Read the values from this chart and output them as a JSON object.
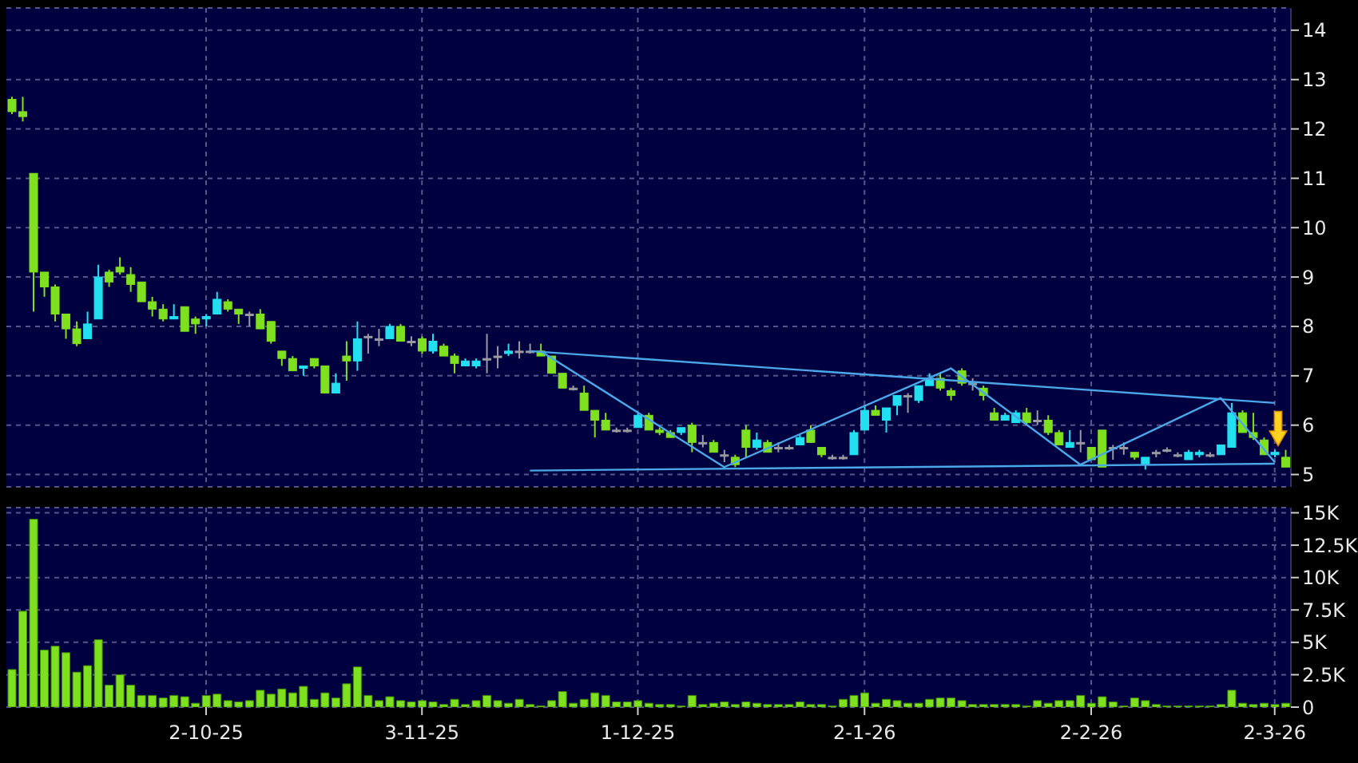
{
  "chart_data": [
    {
      "type": "candlestick",
      "categories": [
        null,
        null,
        null,
        null,
        null,
        null,
        null,
        null,
        null,
        null,
        null,
        null,
        null,
        null,
        null,
        null,
        null,
        null,
        null,
        null,
        null,
        null,
        null,
        null,
        null,
        null,
        null,
        null,
        null,
        null,
        null,
        null,
        null,
        null,
        null,
        null,
        null,
        null,
        null,
        null,
        null,
        null,
        null,
        null,
        null,
        null,
        null,
        null,
        null,
        null,
        null,
        null,
        null,
        null,
        null,
        null,
        null,
        null,
        null,
        null,
        null,
        null,
        null,
        null,
        null,
        null,
        null,
        null,
        null,
        null,
        null,
        null,
        null,
        null,
        null,
        null,
        null,
        null,
        null,
        null,
        null,
        null,
        null,
        null,
        null,
        null,
        null,
        null,
        null,
        null,
        null,
        null,
        null,
        null,
        null,
        null,
        null,
        null,
        null,
        null,
        null,
        null,
        null,
        null,
        null,
        null,
        null,
        null,
        null,
        null,
        null,
        null,
        null,
        null,
        null,
        null,
        null,
        null,
        null
      ],
      "ohlc": [
        [
          12.6,
          12.65,
          12.3,
          12.35
        ],
        [
          12.35,
          12.65,
          12.15,
          12.25
        ],
        [
          11.1,
          11.1,
          8.3,
          9.1
        ],
        [
          9.1,
          9.1,
          8.6,
          8.8
        ],
        [
          8.8,
          8.85,
          8.1,
          8.25
        ],
        [
          8.25,
          8.25,
          7.75,
          7.95
        ],
        [
          7.95,
          8.1,
          7.6,
          7.65
        ],
        [
          7.75,
          8.3,
          7.75,
          8.05
        ],
        [
          8.15,
          9.25,
          8.15,
          9.0
        ],
        [
          9.1,
          9.15,
          8.8,
          8.9
        ],
        [
          9.2,
          9.4,
          9.05,
          9.1
        ],
        [
          9.05,
          9.2,
          8.7,
          8.85
        ],
        [
          8.9,
          8.9,
          8.5,
          8.5
        ],
        [
          8.5,
          8.6,
          8.2,
          8.35
        ],
        [
          8.35,
          8.45,
          8.1,
          8.15
        ],
        [
          8.15,
          8.45,
          8.15,
          8.2
        ],
        [
          8.4,
          8.4,
          7.9,
          7.9
        ],
        [
          8.15,
          8.2,
          7.85,
          8.05
        ],
        [
          8.15,
          8.25,
          8.0,
          8.2
        ],
        [
          8.25,
          8.7,
          8.25,
          8.55
        ],
        [
          8.5,
          8.55,
          8.3,
          8.35
        ],
        [
          8.35,
          8.35,
          8.05,
          8.25
        ],
        [
          8.25,
          8.3,
          8.0,
          8.25
        ],
        [
          8.25,
          8.35,
          7.95,
          7.95
        ],
        [
          8.1,
          8.1,
          7.65,
          7.7
        ],
        [
          7.5,
          7.5,
          7.2,
          7.35
        ],
        [
          7.35,
          7.4,
          7.1,
          7.1
        ],
        [
          7.15,
          7.2,
          7.0,
          7.2
        ],
        [
          7.35,
          7.35,
          7.15,
          7.2
        ],
        [
          7.2,
          7.2,
          6.65,
          6.65
        ],
        [
          6.65,
          7.05,
          6.65,
          6.85
        ],
        [
          7.4,
          7.7,
          6.9,
          7.3
        ],
        [
          7.3,
          8.1,
          7.1,
          7.75
        ],
        [
          7.8,
          7.85,
          7.45,
          7.8
        ],
        [
          7.75,
          7.95,
          7.6,
          7.75
        ],
        [
          7.75,
          8.05,
          7.75,
          8.0
        ],
        [
          8.0,
          8.05,
          7.7,
          7.7
        ],
        [
          7.7,
          7.8,
          7.6,
          7.7
        ],
        [
          7.75,
          7.8,
          7.45,
          7.5
        ],
        [
          7.5,
          7.85,
          7.45,
          7.7
        ],
        [
          7.6,
          7.65,
          7.4,
          7.4
        ],
        [
          7.4,
          7.45,
          7.05,
          7.25
        ],
        [
          7.2,
          7.35,
          7.2,
          7.3
        ],
        [
          7.2,
          7.35,
          7.15,
          7.3
        ],
        [
          7.35,
          7.85,
          7.05,
          7.35
        ],
        [
          7.4,
          7.6,
          7.15,
          7.4
        ],
        [
          7.45,
          7.65,
          7.4,
          7.5
        ],
        [
          7.5,
          7.7,
          7.35,
          7.5
        ],
        [
          7.5,
          7.65,
          7.45,
          7.5
        ],
        [
          7.5,
          7.65,
          7.4,
          7.4
        ],
        [
          7.4,
          7.4,
          7.05,
          7.05
        ],
        [
          7.05,
          7.05,
          6.75,
          6.75
        ],
        [
          6.75,
          6.8,
          6.7,
          6.75
        ],
        [
          6.65,
          6.8,
          6.3,
          6.3
        ],
        [
          6.3,
          6.3,
          5.75,
          6.1
        ],
        [
          6.1,
          6.25,
          5.9,
          5.9
        ],
        [
          5.9,
          5.95,
          5.85,
          5.9
        ],
        [
          5.9,
          5.95,
          5.85,
          5.9
        ],
        [
          5.95,
          6.25,
          5.95,
          6.2
        ],
        [
          6.2,
          6.25,
          5.9,
          5.9
        ],
        [
          5.9,
          5.95,
          5.8,
          5.85
        ],
        [
          5.85,
          5.9,
          5.75,
          5.75
        ],
        [
          5.85,
          5.95,
          5.8,
          5.95
        ],
        [
          6.0,
          6.05,
          5.45,
          5.65
        ],
        [
          5.65,
          5.8,
          5.55,
          5.65
        ],
        [
          5.65,
          5.7,
          5.45,
          5.45
        ],
        [
          5.4,
          5.5,
          5.25,
          5.4
        ],
        [
          5.35,
          5.4,
          5.15,
          5.2
        ],
        [
          5.9,
          6.0,
          5.35,
          5.55
        ],
        [
          5.55,
          5.85,
          5.5,
          5.7
        ],
        [
          5.65,
          5.7,
          5.45,
          5.45
        ],
        [
          5.55,
          5.65,
          5.45,
          5.55
        ],
        [
          5.55,
          5.6,
          5.5,
          5.55
        ],
        [
          5.6,
          5.8,
          5.6,
          5.75
        ],
        [
          5.9,
          6.0,
          5.65,
          5.65
        ],
        [
          5.55,
          5.55,
          5.35,
          5.4
        ],
        [
          5.35,
          5.4,
          5.3,
          5.35
        ],
        [
          5.35,
          5.4,
          5.3,
          5.35
        ],
        [
          5.4,
          5.9,
          5.4,
          5.85
        ],
        [
          5.9,
          6.4,
          5.9,
          6.3
        ],
        [
          6.3,
          6.4,
          6.2,
          6.2
        ],
        [
          6.1,
          6.35,
          5.85,
          6.35
        ],
        [
          6.4,
          6.6,
          6.2,
          6.6
        ],
        [
          6.6,
          6.65,
          6.25,
          6.6
        ],
        [
          6.5,
          6.8,
          6.45,
          6.8
        ],
        [
          6.8,
          7.05,
          6.8,
          6.95
        ],
        [
          6.95,
          7.05,
          6.7,
          6.75
        ],
        [
          6.7,
          6.75,
          6.5,
          6.6
        ],
        [
          7.1,
          7.15,
          6.8,
          6.85
        ],
        [
          6.85,
          6.95,
          6.7,
          6.85
        ],
        [
          6.75,
          6.8,
          6.5,
          6.6
        ],
        [
          6.25,
          6.35,
          6.1,
          6.1
        ],
        [
          6.1,
          6.25,
          6.1,
          6.2
        ],
        [
          6.05,
          6.3,
          6.05,
          6.25
        ],
        [
          6.25,
          6.35,
          6.0,
          6.05
        ],
        [
          6.1,
          6.3,
          6.0,
          6.1
        ],
        [
          6.1,
          6.2,
          5.8,
          5.85
        ],
        [
          5.85,
          5.9,
          5.6,
          5.6
        ],
        [
          5.55,
          5.9,
          5.55,
          5.65
        ],
        [
          5.65,
          5.9,
          5.45,
          5.65
        ],
        [
          5.55,
          5.55,
          5.3,
          5.3
        ],
        [
          5.9,
          5.9,
          5.15,
          5.15
        ],
        [
          5.55,
          5.6,
          5.3,
          5.55
        ],
        [
          5.55,
          5.65,
          5.4,
          5.55
        ],
        [
          5.45,
          5.45,
          5.3,
          5.35
        ],
        [
          5.2,
          5.35,
          5.1,
          5.35
        ],
        [
          5.45,
          5.5,
          5.35,
          5.45
        ],
        [
          5.5,
          5.55,
          5.45,
          5.5
        ],
        [
          5.4,
          5.45,
          5.35,
          5.4
        ],
        [
          5.3,
          5.5,
          5.3,
          5.45
        ],
        [
          5.4,
          5.5,
          5.35,
          5.45
        ],
        [
          5.4,
          5.45,
          5.35,
          5.4
        ],
        [
          5.4,
          5.6,
          5.4,
          5.6
        ],
        [
          5.55,
          6.45,
          5.55,
          6.25
        ],
        [
          6.25,
          6.3,
          5.85,
          5.85
        ],
        [
          5.85,
          6.25,
          5.7,
          5.75
        ],
        [
          5.7,
          5.75,
          5.4,
          5.4
        ],
        [
          5.4,
          5.5,
          5.35,
          5.45
        ],
        [
          5.35,
          5.5,
          5.15,
          5.15
        ]
      ],
      "colors": [
        "#7ee01e",
        "#7ee01e",
        "#7ee01e",
        "#7ee01e",
        "#7ee01e",
        "#7ee01e",
        "#7ee01e",
        "#22e0f0",
        "#22e0f0",
        "#7ee01e",
        "#7ee01e",
        "#7ee01e",
        "#7ee01e",
        "#7ee01e",
        "#7ee01e",
        "#22e0f0",
        "#7ee01e",
        "#7ee01e",
        "#22e0f0",
        "#22e0f0",
        "#7ee01e",
        "#7ee01e",
        "#9a9aa0",
        "#7ee01e",
        "#7ee01e",
        "#7ee01e",
        "#7ee01e",
        "#22e0f0",
        "#7ee01e",
        "#7ee01e",
        "#22e0f0",
        "#7ee01e",
        "#22e0f0",
        "#9a9aa0",
        "#9a9aa0",
        "#22e0f0",
        "#7ee01e",
        "#9a9aa0",
        "#7ee01e",
        "#22e0f0",
        "#7ee01e",
        "#7ee01e",
        "#22e0f0",
        "#22e0f0",
        "#9a9aa0",
        "#9a9aa0",
        "#22e0f0",
        "#9a9aa0",
        "#9a9aa0",
        "#7ee01e",
        "#7ee01e",
        "#7ee01e",
        "#9a9aa0",
        "#7ee01e",
        "#7ee01e",
        "#7ee01e",
        "#9a9aa0",
        "#9a9aa0",
        "#22e0f0",
        "#7ee01e",
        "#7ee01e",
        "#7ee01e",
        "#22e0f0",
        "#7ee01e",
        "#9a9aa0",
        "#7ee01e",
        "#9a9aa0",
        "#7ee01e",
        "#7ee01e",
        "#22e0f0",
        "#7ee01e",
        "#9a9aa0",
        "#9a9aa0",
        "#22e0f0",
        "#7ee01e",
        "#7ee01e",
        "#9a9aa0",
        "#9a9aa0",
        "#22e0f0",
        "#22e0f0",
        "#7ee01e",
        "#22e0f0",
        "#22e0f0",
        "#9a9aa0",
        "#22e0f0",
        "#22e0f0",
        "#7ee01e",
        "#7ee01e",
        "#7ee01e",
        "#9a9aa0",
        "#7ee01e",
        "#7ee01e",
        "#22e0f0",
        "#22e0f0",
        "#7ee01e",
        "#9a9aa0",
        "#7ee01e",
        "#7ee01e",
        "#22e0f0",
        "#9a9aa0",
        "#7ee01e",
        "#7ee01e",
        "#9a9aa0",
        "#9a9aa0",
        "#7ee01e",
        "#22e0f0",
        "#9a9aa0",
        "#9a9aa0",
        "#9a9aa0",
        "#22e0f0",
        "#22e0f0",
        "#9a9aa0",
        "#22e0f0",
        "#22e0f0",
        "#7ee01e",
        "#7ee01e",
        "#7ee01e",
        "#22e0f0",
        "#7ee01e"
      ],
      "series": [
        {
          "type": "line",
          "color": "#4aa8e8",
          "values": [
            null,
            null,
            null,
            null,
            null,
            null,
            null,
            null,
            null,
            null,
            null,
            null,
            null,
            null,
            null,
            null,
            null,
            null,
            null,
            null,
            null,
            null,
            null,
            null,
            null,
            null,
            null,
            null,
            null,
            null,
            null,
            null,
            null,
            null,
            null,
            null,
            null,
            null,
            null,
            null,
            null,
            null,
            null,
            null,
            null,
            null,
            null,
            null,
            7.5,
            null,
            null,
            null,
            null,
            null,
            null,
            null,
            null,
            null,
            null,
            null,
            null,
            null,
            null,
            null,
            null,
            null,
            null,
            null,
            null,
            null,
            null,
            null,
            null,
            null,
            null,
            null,
            null,
            null,
            null,
            null,
            null,
            null,
            null,
            null,
            null,
            null,
            null,
            null,
            null,
            null,
            null,
            null,
            null,
            null,
            null,
            null,
            null,
            null,
            null,
            null,
            null,
            null,
            null,
            null,
            null,
            null,
            null,
            null,
            null,
            null,
            null,
            null,
            null,
            null,
            null,
            null,
            null,
            6.45,
            null
          ]
        },
        {
          "type": "line",
          "color": "#4aa8e8",
          "values": [
            null,
            null,
            null,
            null,
            null,
            null,
            null,
            null,
            null,
            null,
            null,
            null,
            null,
            null,
            null,
            null,
            null,
            null,
            null,
            null,
            null,
            null,
            null,
            null,
            null,
            null,
            null,
            null,
            null,
            null,
            null,
            null,
            null,
            null,
            null,
            null,
            null,
            null,
            null,
            null,
            null,
            null,
            null,
            null,
            null,
            null,
            null,
            null,
            5.08,
            null,
            null,
            null,
            null,
            null,
            null,
            null,
            null,
            null,
            null,
            null,
            null,
            null,
            null,
            null,
            null,
            null,
            null,
            null,
            null,
            null,
            null,
            null,
            null,
            null,
            null,
            null,
            null,
            null,
            null,
            null,
            null,
            null,
            null,
            null,
            null,
            null,
            null,
            null,
            null,
            null,
            null,
            null,
            null,
            null,
            null,
            null,
            null,
            null,
            null,
            null,
            null,
            null,
            null,
            null,
            null,
            null,
            null,
            null,
            null,
            null,
            null,
            null,
            null,
            null,
            null,
            null,
            null,
            5.22,
            null
          ]
        },
        {
          "type": "line",
          "color": "#4aa8e8",
          "values": [
            null,
            null,
            null,
            null,
            null,
            null,
            null,
            null,
            null,
            null,
            null,
            null,
            null,
            null,
            null,
            null,
            null,
            null,
            null,
            null,
            null,
            null,
            null,
            null,
            null,
            null,
            null,
            null,
            null,
            null,
            null,
            null,
            null,
            null,
            null,
            null,
            null,
            null,
            null,
            null,
            null,
            null,
            null,
            null,
            null,
            null,
            null,
            null,
            null,
            7.5,
            null,
            null,
            null,
            null,
            null,
            null,
            null,
            null,
            null,
            null,
            null,
            null,
            null,
            null,
            null,
            null,
            5.15,
            null,
            null,
            null,
            null,
            null,
            null,
            null,
            null,
            null,
            null,
            null,
            null,
            null,
            null,
            null,
            null,
            null,
            null,
            null,
            null,
            7.15,
            null,
            null,
            null,
            null,
            null,
            null,
            null,
            null,
            null,
            null,
            null,
            5.2,
            null,
            null,
            null,
            null,
            null,
            null,
            null,
            null,
            null,
            null,
            null,
            null,
            6.55,
            null,
            null,
            null,
            null,
            5.25,
            null
          ]
        }
      ],
      "ylim": [
        4.75,
        14.45
      ],
      "yticks": [
        5,
        6,
        7,
        8,
        9,
        10,
        11,
        12,
        13,
        14
      ],
      "grid": true,
      "tick_labels": "y"
    },
    {
      "type": "bar",
      "categories": [
        null,
        null,
        null,
        null,
        null,
        null,
        null,
        null,
        null,
        null,
        null,
        null,
        null,
        null,
        null,
        null,
        null,
        null,
        "2-10-25",
        null,
        null,
        null,
        null,
        null,
        null,
        null,
        null,
        null,
        null,
        null,
        null,
        null,
        null,
        null,
        null,
        null,
        null,
        null,
        "3-11-25",
        null,
        null,
        null,
        null,
        null,
        null,
        null,
        null,
        null,
        null,
        null,
        null,
        null,
        null,
        null,
        null,
        null,
        null,
        null,
        "1-12-25",
        null,
        null,
        null,
        null,
        null,
        null,
        null,
        null,
        null,
        null,
        null,
        null,
        null,
        null,
        null,
        null,
        null,
        null,
        null,
        null,
        "2-1-26",
        null,
        null,
        null,
        null,
        null,
        null,
        null,
        null,
        null,
        null,
        null,
        null,
        null,
        null,
        null,
        null,
        null,
        null,
        null,
        null,
        "2-2-26",
        null,
        null,
        null,
        null,
        null,
        null,
        null,
        null,
        null,
        null,
        null,
        null,
        null,
        null,
        null,
        null,
        "2-3-26",
        null
      ],
      "values": [
        2900,
        7400,
        14500,
        4400,
        4700,
        4200,
        2700,
        3200,
        5200,
        1700,
        2500,
        1700,
        900,
        900,
        700,
        900,
        800,
        300,
        900,
        1000,
        500,
        400,
        500,
        1300,
        1000,
        1400,
        1100,
        1600,
        600,
        1100,
        700,
        1800,
        3100,
        900,
        500,
        800,
        500,
        400,
        500,
        400,
        200,
        600,
        200,
        500,
        900,
        500,
        300,
        600,
        200,
        100,
        500,
        1200,
        300,
        600,
        1100,
        900,
        400,
        400,
        500,
        300,
        200,
        200,
        100,
        900,
        200,
        300,
        400,
        200,
        400,
        300,
        200,
        200,
        200,
        400,
        200,
        200,
        100,
        600,
        900,
        1100,
        300,
        600,
        500,
        300,
        300,
        600,
        700,
        700,
        500,
        200,
        200,
        200,
        200,
        200,
        100,
        500,
        300,
        500,
        500,
        900,
        300,
        800,
        400,
        100,
        700,
        500,
        200,
        100,
        100,
        100,
        100,
        100,
        200,
        1300,
        300,
        200,
        300,
        200,
        300
      ],
      "color": "#7ee01e",
      "ylim": [
        0,
        15400
      ],
      "yticks": [
        0,
        {
          "value": 2500,
          "label": "2.5K"
        },
        {
          "value": 5000,
          "label": "5K"
        },
        {
          "value": 7500,
          "label": "7.5K"
        },
        {
          "value": 10000,
          "label": "10K"
        },
        {
          "value": 12500,
          "label": "12.5K"
        },
        {
          "value": 15000,
          "label": "15K"
        }
      ],
      "grid": true
    }
  ]
}
